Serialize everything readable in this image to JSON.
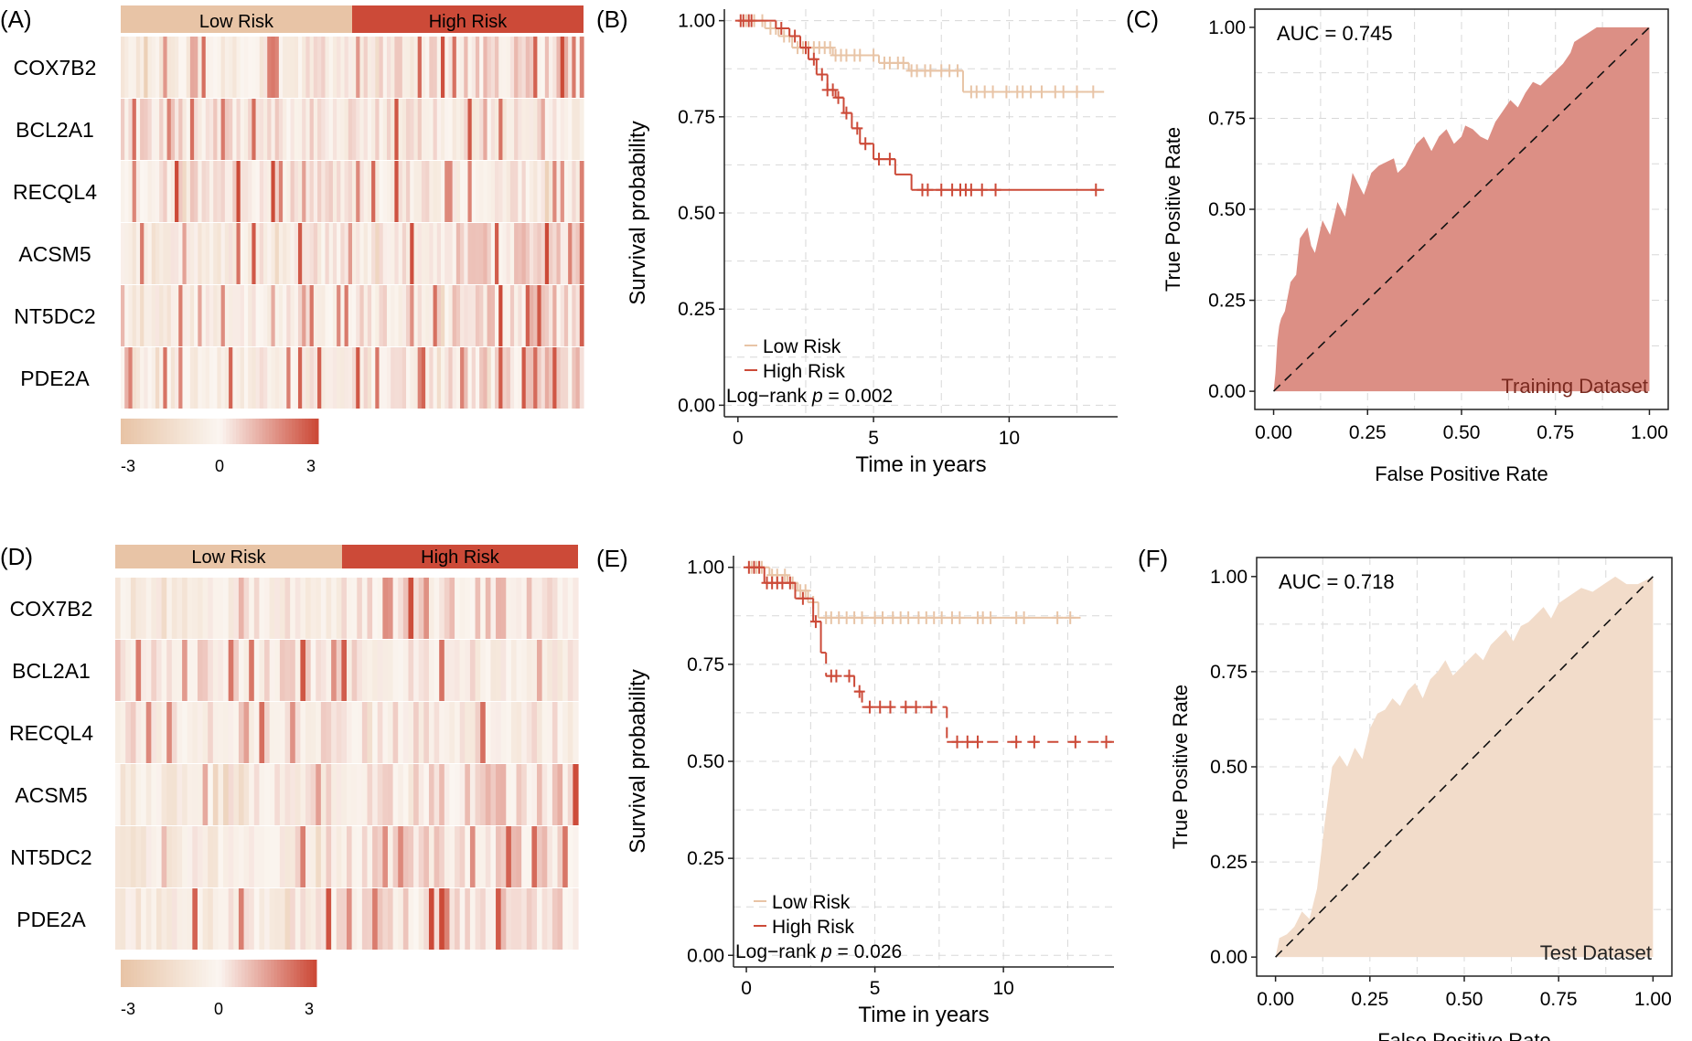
{
  "colors": {
    "low": "#e8c4a6",
    "high": "#cc4a38",
    "mid": "#fbf6f1",
    "roc_train": "#dc8f85",
    "roc_test": "#f2dcca",
    "grid": "#d8d8d8",
    "axis": "#222222"
  },
  "panels": {
    "A": {
      "label": "(A)"
    },
    "B": {
      "label": "(B)"
    },
    "C": {
      "label": "(C)"
    },
    "D": {
      "label": "(D)"
    },
    "E": {
      "label": "(E)"
    },
    "F": {
      "label": "(F)"
    }
  },
  "chart_data": [
    {
      "panel": "A",
      "type": "heatmap",
      "groups": [
        "Low Risk",
        "High Risk"
      ],
      "low_fraction": 0.5,
      "genes": [
        "COX7B2",
        "BCL2A1",
        "RECQL4",
        "ACSM5",
        "NT5DC2",
        "PDE2A"
      ],
      "ncols": 120,
      "seed": 17,
      "colorbar": {
        "ticks": [
          "-3",
          "0",
          "3"
        ],
        "range": [
          -3,
          3
        ]
      }
    },
    {
      "panel": "B",
      "type": "line",
      "subtype": "kaplan-meier",
      "xlabel": "Time in years",
      "ylabel": "Survival probability",
      "xlim": [
        -0.5,
        14
      ],
      "ylim": [
        -0.03,
        1.03
      ],
      "xticks": [
        0,
        5,
        10
      ],
      "yticks": [
        0,
        0.25,
        0.5,
        0.75,
        1.0
      ],
      "ytick_labels": [
        "0.00",
        "0.25",
        "0.50",
        "0.75",
        "1.00"
      ],
      "legend": [
        "Low Risk",
        "High Risk"
      ],
      "annotation": {
        "prefix": "Log−rank ",
        "p_label": "p",
        "value": " = 0.002"
      },
      "series": [
        {
          "name": "Low Risk",
          "color": "#e8c4a6",
          "steps": [
            [
              0,
              1
            ],
            [
              1.0,
              0.98
            ],
            [
              1.5,
              0.96
            ],
            [
              2.0,
              0.93
            ],
            [
              3.5,
              0.91
            ],
            [
              5.2,
              0.89
            ],
            [
              6.3,
              0.87
            ],
            [
              8.3,
              0.815
            ],
            [
              13.5,
              0.815
            ]
          ],
          "censor": [
            0.3,
            0.6,
            0.9,
            1.2,
            1.4,
            1.7,
            1.9,
            2.2,
            2.4,
            2.6,
            2.8,
            3.0,
            3.2,
            3.4,
            3.6,
            3.8,
            4.0,
            4.3,
            4.5,
            5.0,
            5.4,
            5.6,
            5.9,
            6.1,
            6.4,
            6.6,
            6.9,
            7.1,
            7.5,
            7.8,
            8.1,
            8.6,
            8.8,
            9.1,
            9.4,
            9.9,
            10.3,
            10.5,
            10.8,
            11.2,
            11.7,
            12.0,
            12.5,
            13.1
          ]
        },
        {
          "name": "High Risk",
          "color": "#cc4a38",
          "steps": [
            [
              0,
              1
            ],
            [
              1.4,
              0.98
            ],
            [
              1.9,
              0.96
            ],
            [
              2.3,
              0.93
            ],
            [
              2.6,
              0.9
            ],
            [
              2.9,
              0.86
            ],
            [
              3.3,
              0.82
            ],
            [
              3.6,
              0.8
            ],
            [
              3.9,
              0.76
            ],
            [
              4.2,
              0.72
            ],
            [
              4.5,
              0.68
            ],
            [
              5.0,
              0.64
            ],
            [
              5.8,
              0.6
            ],
            [
              6.4,
              0.56
            ],
            [
              13.5,
              0.56
            ]
          ],
          "censor": [
            0.1,
            0.2,
            0.4,
            0.5,
            1.6,
            2.1,
            2.5,
            2.8,
            3.1,
            3.3,
            3.5,
            3.7,
            4.0,
            4.4,
            4.7,
            5.2,
            5.6,
            6.8,
            7.0,
            7.5,
            7.9,
            8.2,
            8.4,
            8.6,
            9.0,
            9.5,
            13.2
          ],
          "dash_after": 10
        }
      ]
    },
    {
      "panel": "C",
      "type": "area",
      "subtype": "roc",
      "xlabel": "False Positive Rate",
      "ylabel": "True Positive Rate",
      "xlim": [
        -0.05,
        1.05
      ],
      "ylim": [
        -0.05,
        1.05
      ],
      "ticks": [
        0,
        0.25,
        0.5,
        0.75,
        1.0
      ],
      "tick_labels": [
        "0.00",
        "0.25",
        "0.50",
        "0.75",
        "1.00"
      ],
      "auc_label": "AUC = 0.745",
      "dataset_label": "Training Dataset",
      "fill": "#dc8f85",
      "x": [
        0,
        0.005,
        0.01,
        0.015,
        0.02,
        0.03,
        0.045,
        0.06,
        0.07,
        0.09,
        0.1,
        0.11,
        0.13,
        0.15,
        0.17,
        0.19,
        0.21,
        0.22,
        0.24,
        0.26,
        0.28,
        0.3,
        0.32,
        0.33,
        0.35,
        0.37,
        0.38,
        0.4,
        0.42,
        0.44,
        0.46,
        0.48,
        0.5,
        0.51,
        0.53,
        0.55,
        0.57,
        0.59,
        0.61,
        0.63,
        0.65,
        0.67,
        0.69,
        0.71,
        0.73,
        0.75,
        0.77,
        0.79,
        0.8,
        0.83,
        0.86,
        0.9,
        0.95,
        1.0
      ],
      "y": [
        0,
        0.05,
        0.14,
        0.18,
        0.2,
        0.22,
        0.3,
        0.32,
        0.42,
        0.45,
        0.4,
        0.38,
        0.47,
        0.43,
        0.52,
        0.48,
        0.6,
        0.58,
        0.54,
        0.6,
        0.62,
        0.63,
        0.64,
        0.6,
        0.62,
        0.66,
        0.68,
        0.7,
        0.66,
        0.7,
        0.72,
        0.68,
        0.7,
        0.73,
        0.72,
        0.7,
        0.69,
        0.74,
        0.77,
        0.8,
        0.78,
        0.82,
        0.85,
        0.84,
        0.86,
        0.88,
        0.9,
        0.93,
        0.96,
        0.98,
        1.0,
        1.0,
        1.0,
        1.0
      ]
    },
    {
      "panel": "D",
      "type": "heatmap",
      "groups": [
        "Low Risk",
        "High Risk"
      ],
      "low_fraction": 0.49,
      "genes": [
        "COX7B2",
        "BCL2A1",
        "RECQL4",
        "ACSM5",
        "NT5DC2",
        "PDE2A"
      ],
      "ncols": 90,
      "seed": 41,
      "colorbar": {
        "ticks": [
          "-3",
          "0",
          "3"
        ],
        "range": [
          -3,
          3
        ]
      }
    },
    {
      "panel": "E",
      "type": "line",
      "subtype": "kaplan-meier",
      "xlabel": "Time in years",
      "ylabel": "Survival probability",
      "xlim": [
        -0.5,
        14.3
      ],
      "ylim": [
        -0.03,
        1.03
      ],
      "xticks": [
        0,
        5,
        10
      ],
      "yticks": [
        0,
        0.25,
        0.5,
        0.75,
        1.0
      ],
      "ytick_labels": [
        "0.00",
        "0.25",
        "0.50",
        "0.75",
        "1.00"
      ],
      "legend": [
        "Low Risk",
        "High Risk"
      ],
      "annotation": {
        "prefix": "Log−rank ",
        "p_label": "p",
        "value": " = 0.026"
      },
      "series": [
        {
          "name": "Low Risk",
          "color": "#e8c4a6",
          "steps": [
            [
              0,
              1
            ],
            [
              0.9,
              0.98
            ],
            [
              1.6,
              0.96
            ],
            [
              2.0,
              0.94
            ],
            [
              2.4,
              0.91
            ],
            [
              2.8,
              0.87
            ],
            [
              13.0,
              0.87
            ]
          ],
          "censor": [
            0.2,
            0.4,
            0.6,
            1.0,
            1.2,
            1.5,
            1.8,
            2.1,
            2.3,
            2.6,
            3.1,
            3.3,
            3.6,
            3.9,
            4.2,
            4.5,
            5.0,
            5.3,
            5.7,
            6.0,
            6.3,
            6.7,
            7.0,
            7.3,
            7.6,
            8.0,
            8.3,
            9.0,
            9.2,
            9.5,
            10.5,
            10.8,
            12.1,
            12.6
          ],
          "dash_after": 9.6
        },
        {
          "name": "High Risk",
          "color": "#cc4a38",
          "steps": [
            [
              0,
              1
            ],
            [
              0.7,
              0.96
            ],
            [
              1.9,
              0.92
            ],
            [
              2.6,
              0.86
            ],
            [
              2.9,
              0.78
            ],
            [
              3.1,
              0.72
            ],
            [
              4.2,
              0.68
            ],
            [
              4.5,
              0.64
            ],
            [
              7.8,
              0.55
            ],
            [
              14.3,
              0.55
            ]
          ],
          "censor": [
            0.1,
            0.3,
            0.5,
            0.8,
            1.0,
            1.2,
            1.4,
            1.7,
            2.2,
            2.7,
            3.3,
            3.5,
            4.0,
            4.4,
            4.8,
            5.2,
            5.6,
            6.2,
            6.6,
            7.2,
            8.2,
            8.6,
            9.0,
            10.5,
            11.2,
            12.8,
            14.0
          ],
          "dash_after": 3.0
        }
      ]
    },
    {
      "panel": "F",
      "type": "area",
      "subtype": "roc",
      "xlabel": "False Positive Rate",
      "ylabel": "True Positive Rate",
      "xlim": [
        -0.05,
        1.05
      ],
      "ylim": [
        -0.05,
        1.05
      ],
      "ticks": [
        0,
        0.25,
        0.5,
        0.75,
        1.0
      ],
      "tick_labels": [
        "0.00",
        "0.25",
        "0.50",
        "0.75",
        "1.00"
      ],
      "auc_label": "AUC = 0.718",
      "dataset_label": "Test Dataset",
      "fill": "#f2dcca",
      "x": [
        0,
        0.01,
        0.03,
        0.05,
        0.07,
        0.09,
        0.11,
        0.13,
        0.15,
        0.17,
        0.19,
        0.21,
        0.23,
        0.25,
        0.27,
        0.29,
        0.31,
        0.33,
        0.35,
        0.37,
        0.39,
        0.41,
        0.43,
        0.45,
        0.47,
        0.49,
        0.51,
        0.53,
        0.55,
        0.57,
        0.59,
        0.61,
        0.63,
        0.65,
        0.67,
        0.69,
        0.71,
        0.73,
        0.75,
        0.78,
        0.81,
        0.84,
        0.87,
        0.9,
        0.93,
        0.96,
        1.0
      ],
      "y": [
        0,
        0.05,
        0.06,
        0.08,
        0.12,
        0.1,
        0.18,
        0.35,
        0.5,
        0.53,
        0.5,
        0.55,
        0.52,
        0.6,
        0.64,
        0.65,
        0.68,
        0.66,
        0.7,
        0.72,
        0.68,
        0.73,
        0.75,
        0.78,
        0.74,
        0.76,
        0.78,
        0.8,
        0.78,
        0.82,
        0.84,
        0.86,
        0.83,
        0.87,
        0.88,
        0.9,
        0.92,
        0.89,
        0.93,
        0.95,
        0.97,
        0.96,
        0.98,
        1.0,
        0.98,
        0.98,
        1.0
      ]
    }
  ]
}
